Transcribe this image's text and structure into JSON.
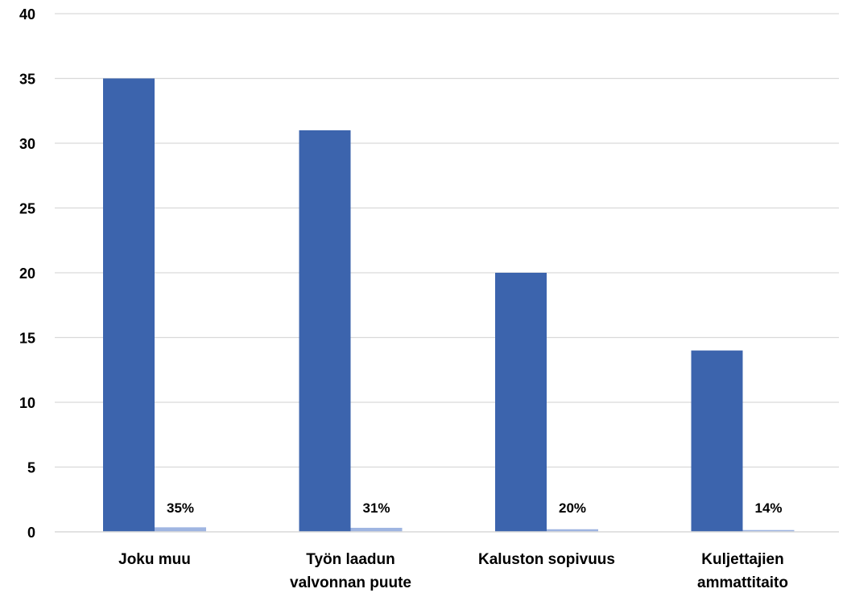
{
  "chart_data": {
    "type": "bar",
    "categories": [
      [
        "Joku muu"
      ],
      [
        "Työn laadun",
        "valvonnan puute"
      ],
      [
        "Kaluston sopivuus"
      ],
      [
        "Kuljettajien",
        "ammattitaito"
      ]
    ],
    "series": [
      {
        "values": [
          35,
          31,
          20,
          14
        ],
        "color": "#3c64ad"
      },
      {
        "values": [
          0.35,
          0.31,
          0.2,
          0.14
        ],
        "color": "#9fb5e1",
        "data_labels": [
          "35%",
          "31%",
          "20%",
          "14%"
        ]
      }
    ],
    "ylim": [
      0,
      40
    ],
    "yticks": [
      "0",
      "5",
      "10",
      "15",
      "20",
      "25",
      "30",
      "35",
      "40"
    ],
    "grid": true,
    "gridline_color": "#d9d9d9",
    "title": "",
    "xlabel": "",
    "ylabel": ""
  }
}
